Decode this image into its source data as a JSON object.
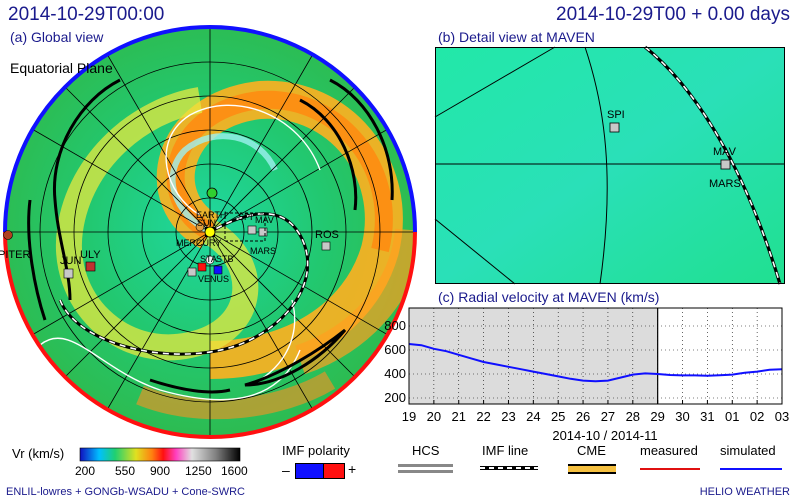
{
  "header": {
    "left_title": "2014-10-29T00:00",
    "right_title": "2014-10-29T00 + 0.00 days"
  },
  "panels": {
    "global_label": "(a) Global view",
    "detail_label": "(b) Detail view at MAVEN",
    "radial_label": "(c) Radial velocity at MAVEN (km/s)",
    "equatorial_plane": "Equatorial Plane"
  },
  "global_map": {
    "bodies": {
      "earth": "EARTH",
      "sun": "SUN",
      "mercury": "MERCURY",
      "venus": "VENUS",
      "mars": "MARS",
      "maven": "MAV",
      "spitzer": "SPI",
      "rosetta": "ROS",
      "jupiter": "PITER",
      "juno": "JUN",
      "ulysses": "ULY",
      "sta": "STA",
      "stb": "STB"
    },
    "colors": {
      "north_rim": "#1010ff",
      "south_rim": "#ff1010",
      "cme": "#000000"
    }
  },
  "detail_map": {
    "spi": "SPI",
    "mav": "MAV",
    "mars": "MARS"
  },
  "chart_data": {
    "type": "line",
    "title": "(c) Radial velocity at MAVEN (km/s)",
    "xlabel": "2014-10 / 2014-11",
    "x_ticks": [
      "19",
      "20",
      "21",
      "22",
      "23",
      "24",
      "25",
      "26",
      "27",
      "28",
      "29",
      "30",
      "31",
      "01",
      "02",
      "03"
    ],
    "y_ticks": [
      200,
      400,
      600,
      800
    ],
    "ylim": [
      150,
      950
    ],
    "now_index": 10,
    "series": [
      {
        "name": "simulated",
        "color": "#1010ff",
        "points": [
          [
            0,
            650
          ],
          [
            0.5,
            640
          ],
          [
            1,
            610
          ],
          [
            1.5,
            590
          ],
          [
            2,
            560
          ],
          [
            2.5,
            530
          ],
          [
            3,
            500
          ],
          [
            3.5,
            480
          ],
          [
            4,
            460
          ],
          [
            4.5,
            440
          ],
          [
            5,
            420
          ],
          [
            5.5,
            400
          ],
          [
            6,
            380
          ],
          [
            6.5,
            360
          ],
          [
            7,
            345
          ],
          [
            7.5,
            340
          ],
          [
            8,
            345
          ],
          [
            8.5,
            370
          ],
          [
            9,
            395
          ],
          [
            9.5,
            405
          ],
          [
            10,
            400
          ],
          [
            10.5,
            392
          ],
          [
            11,
            388
          ],
          [
            11.5,
            388
          ],
          [
            12,
            386
          ],
          [
            12.5,
            390
          ],
          [
            13,
            395
          ],
          [
            13.5,
            410
          ],
          [
            14,
            420
          ],
          [
            14.5,
            435
          ],
          [
            15,
            440
          ]
        ]
      }
    ]
  },
  "legend": {
    "vr_label": "Vr (km/s)",
    "vr_ticks": [
      "200",
      "550",
      "900",
      "1250",
      "1600"
    ],
    "imf_polarity": "IMF polarity",
    "imf_minus": "–",
    "imf_plus": "+",
    "hcs": "HCS",
    "imf_line": "IMF line",
    "cme": "CME",
    "measured": "measured",
    "simulated": "simulated",
    "colors": {
      "imf_negative": "#1010ff",
      "imf_positive": "#ff1010",
      "measured": "#e01010",
      "simulated": "#1010ff",
      "cme": "#f5c040"
    }
  },
  "footer": {
    "left": "ENLIL-lowres + GONGb-WSADU + Cone-SWRC",
    "right": "HELIO WEATHER"
  }
}
